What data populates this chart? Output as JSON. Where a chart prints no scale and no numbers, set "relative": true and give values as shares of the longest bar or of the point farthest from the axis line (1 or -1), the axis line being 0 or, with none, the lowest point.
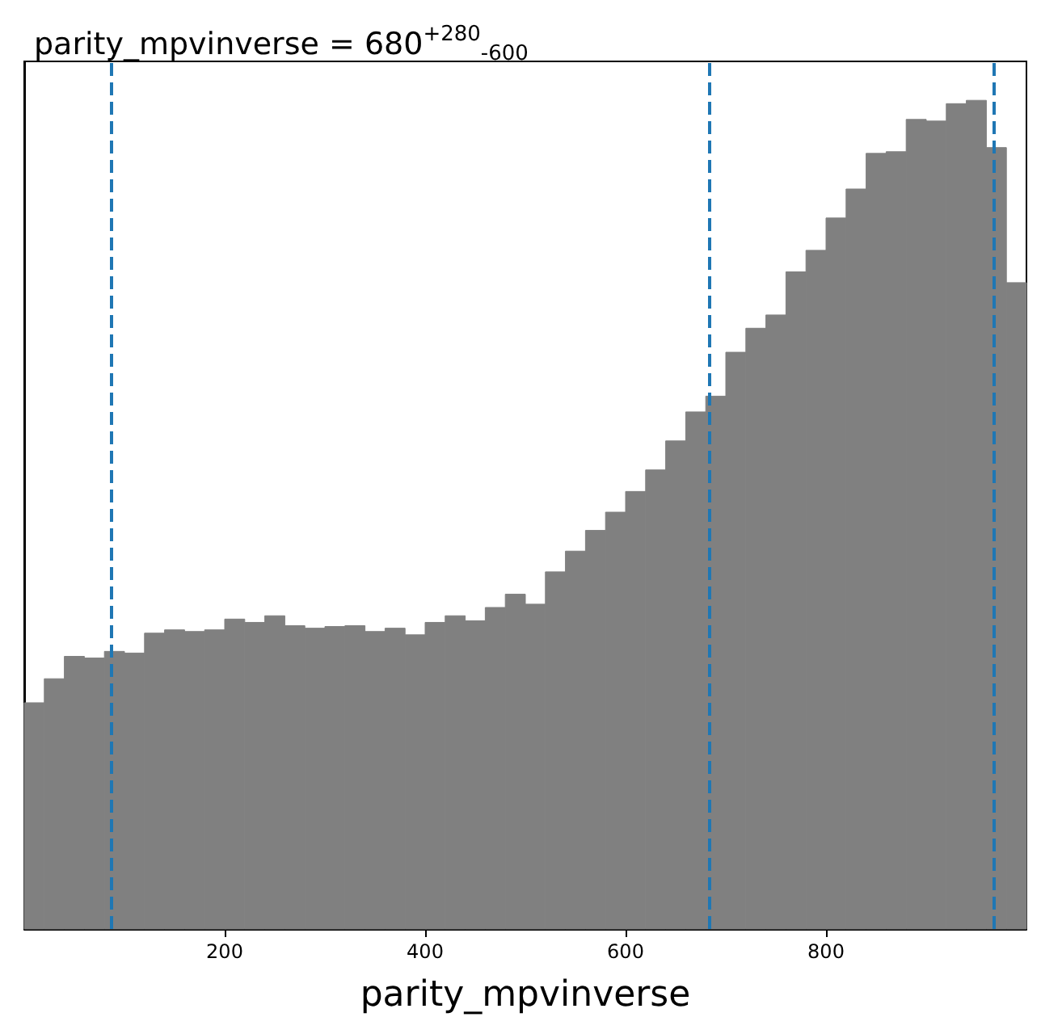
{
  "chart_data": {
    "type": "bar",
    "title": "parity_mpvinverse = 680$^{+280}$$_{-600}$",
    "xlabel": "parity_mpvinverse",
    "relative": true,
    "color": "#808080",
    "x": [
      10,
      30,
      50,
      70,
      90,
      110,
      130,
      150,
      170,
      190,
      210,
      230,
      250,
      270,
      290,
      310,
      330,
      350,
      370,
      390,
      410,
      430,
      450,
      470,
      490,
      510,
      530,
      550,
      570,
      590,
      610,
      630,
      650,
      670,
      690,
      710,
      730,
      750,
      770,
      790,
      810,
      830,
      850,
      870,
      890,
      910,
      930,
      950,
      970,
      990
    ],
    "values": [
      0.273,
      0.302,
      0.329,
      0.327,
      0.335,
      0.333,
      0.357,
      0.361,
      0.359,
      0.361,
      0.374,
      0.37,
      0.378,
      0.366,
      0.363,
      0.365,
      0.366,
      0.359,
      0.363,
      0.355,
      0.37,
      0.378,
      0.372,
      0.388,
      0.404,
      0.392,
      0.431,
      0.456,
      0.481,
      0.503,
      0.528,
      0.554,
      0.589,
      0.624,
      0.643,
      0.696,
      0.725,
      0.741,
      0.793,
      0.819,
      0.858,
      0.893,
      0.936,
      0.938,
      0.977,
      0.975,
      0.996,
      1,
      0.943,
      0.78
    ],
    "xlim": [
      0,
      1000
    ],
    "xticks": [
      200,
      400,
      600,
      800
    ],
    "grid": false,
    "ref_lines": [
      {
        "axis": "x",
        "value": 87,
        "color": "#1f77b4",
        "line_style": "dashed"
      },
      {
        "axis": "x",
        "value": 684,
        "color": "#1f77b4",
        "line_style": "dashed"
      },
      {
        "axis": "x",
        "value": 968,
        "color": "#1f77b4",
        "line_style": "dashed"
      }
    ]
  }
}
